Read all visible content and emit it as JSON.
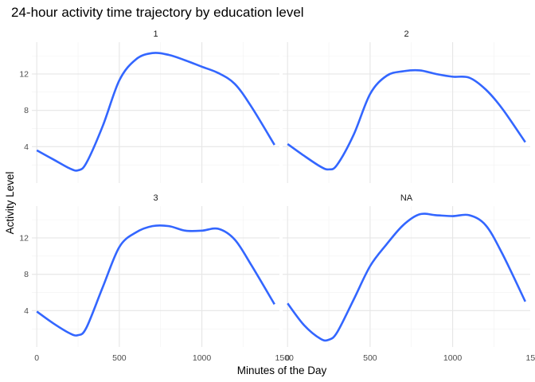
{
  "chart_data": {
    "type": "line",
    "title": "24-hour activity time trajectory by education level",
    "xlabel": "Minutes of the Day",
    "ylabel": "Activity Level",
    "xlim": [
      -30,
      1470
    ],
    "ylim": [
      0,
      15.5
    ],
    "x_ticks": [
      0,
      500,
      1000,
      1500
    ],
    "x_tick_labels": [
      "0",
      "500",
      "1000",
      "1500"
    ],
    "y_ticks": [
      4,
      8,
      12
    ],
    "y_tick_labels": [
      "4",
      "8",
      "12"
    ],
    "grid": true,
    "line_color": "#3366FF",
    "facets": [
      {
        "label": "1",
        "x": [
          0,
          100,
          200,
          250,
          300,
          400,
          500,
          600,
          700,
          800,
          900,
          1000,
          1100,
          1200,
          1300,
          1440
        ],
        "y": [
          3.6,
          2.6,
          1.6,
          1.4,
          2.2,
          6.3,
          11.3,
          13.6,
          14.3,
          14.1,
          13.5,
          12.8,
          12.1,
          10.9,
          8.4,
          4.2
        ]
      },
      {
        "label": "2",
        "x": [
          0,
          100,
          200,
          250,
          300,
          400,
          500,
          600,
          700,
          800,
          900,
          1000,
          1100,
          1200,
          1300,
          1440
        ],
        "y": [
          4.3,
          3.0,
          1.8,
          1.5,
          2.0,
          5.3,
          9.8,
          11.8,
          12.3,
          12.4,
          12.0,
          11.7,
          11.6,
          10.3,
          8.2,
          4.5
        ]
      },
      {
        "label": "3",
        "x": [
          0,
          100,
          200,
          250,
          300,
          400,
          500,
          600,
          700,
          800,
          900,
          1000,
          1100,
          1200,
          1300,
          1440
        ],
        "y": [
          3.9,
          2.6,
          1.5,
          1.3,
          2.1,
          6.6,
          11.0,
          12.6,
          13.3,
          13.3,
          12.8,
          12.8,
          13.0,
          11.8,
          9.0,
          4.7
        ]
      },
      {
        "label": "NA",
        "x": [
          0,
          100,
          200,
          250,
          300,
          400,
          500,
          600,
          700,
          800,
          900,
          1000,
          1100,
          1200,
          1300,
          1440
        ],
        "y": [
          4.8,
          2.4,
          0.9,
          0.8,
          1.6,
          5.2,
          8.9,
          11.3,
          13.4,
          14.6,
          14.5,
          14.4,
          14.5,
          13.4,
          10.3,
          5.0
        ]
      }
    ]
  }
}
